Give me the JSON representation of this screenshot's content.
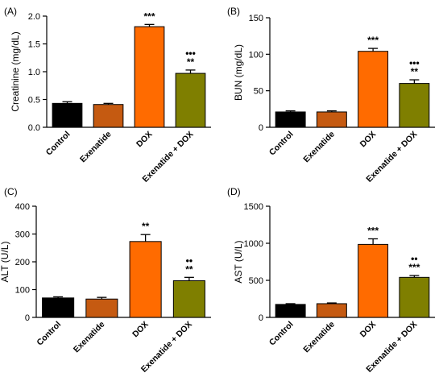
{
  "chart_data": [
    {
      "type": "bar",
      "panel": "(A)",
      "categories": [
        "Control",
        "Exenatide",
        "DOX",
        "Exenatide + DOX"
      ],
      "values": [
        0.43,
        0.41,
        1.81,
        0.97
      ],
      "errors": [
        0.03,
        0.02,
        0.04,
        0.06
      ],
      "significance": [
        [],
        [],
        [
          "***"
        ],
        [
          "•••",
          "**"
        ]
      ],
      "ylabel": "Creatinine (mg/dL)",
      "ylim": [
        0,
        2.0
      ],
      "yticks": [
        "0.0",
        "0.5",
        "1.0",
        "1.5",
        "2.0"
      ],
      "colors": [
        "#000000",
        "#c55a11",
        "#ff6b00",
        "#7f7f00"
      ]
    },
    {
      "type": "bar",
      "panel": "(B)",
      "categories": [
        "Control",
        "Exenatide",
        "DOX",
        "Exenatide + DOX"
      ],
      "values": [
        21,
        21,
        104,
        60
      ],
      "errors": [
        1.5,
        1.5,
        4,
        5
      ],
      "significance": [
        [],
        [],
        [
          "***"
        ],
        [
          "•••",
          "**"
        ]
      ],
      "ylabel": "BUN (mg/dL)",
      "ylim": [
        0,
        150
      ],
      "yticks": [
        "0",
        "50",
        "100",
        "150"
      ],
      "colors": [
        "#000000",
        "#c55a11",
        "#ff6b00",
        "#7f7f00"
      ]
    },
    {
      "type": "bar",
      "panel": "(C)",
      "categories": [
        "Control",
        "Exenatide",
        "DOX",
        "Exenatide + DOX"
      ],
      "values": [
        70,
        66,
        273,
        132
      ],
      "errors": [
        4,
        6,
        25,
        12
      ],
      "significance": [
        [],
        [],
        [
          "**"
        ],
        [
          "••",
          "**"
        ]
      ],
      "ylabel": "ALT (U/L)",
      "ylim": [
        0,
        400
      ],
      "yticks": [
        "0",
        "100",
        "200",
        "300",
        "400"
      ],
      "colors": [
        "#000000",
        "#c55a11",
        "#ff6b00",
        "#7f7f00"
      ]
    },
    {
      "type": "bar",
      "panel": "(D)",
      "categories": [
        "Control",
        "Exenatide",
        "DOX",
        "Exenatide + DOX"
      ],
      "values": [
        175,
        185,
        985,
        540
      ],
      "errors": [
        10,
        10,
        75,
        25
      ],
      "significance": [
        [],
        [],
        [
          "***"
        ],
        [
          "••",
          "***"
        ]
      ],
      "ylabel": "AST (U/L)",
      "ylim": [
        0,
        1500
      ],
      "yticks": [
        "0",
        "500",
        "1000",
        "1500"
      ],
      "colors": [
        "#000000",
        "#c55a11",
        "#ff6b00",
        "#7f7f00"
      ]
    }
  ]
}
